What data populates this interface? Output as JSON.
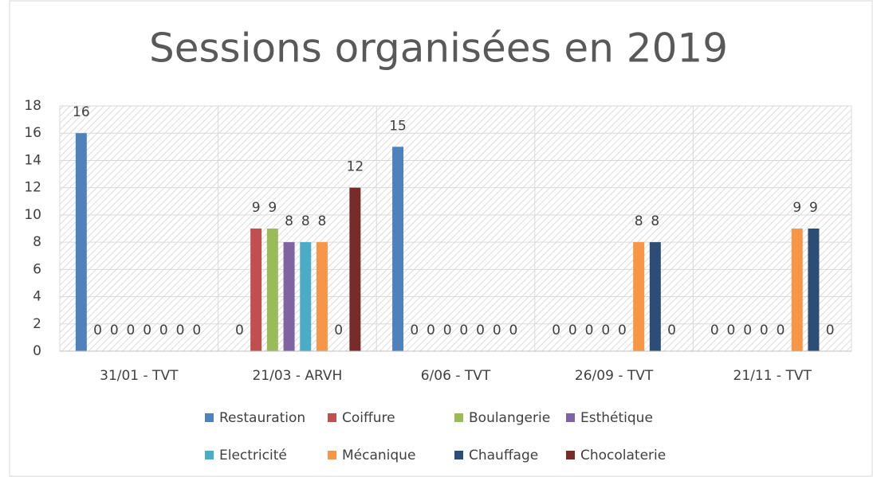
{
  "chart_data": {
    "type": "bar",
    "title": "Sessions organisées en 2019",
    "categories": [
      "31/01 - TVT",
      "21/03 - ARVH",
      "6/06 - TVT",
      "26/09 - TVT",
      "21/11 - TVT"
    ],
    "series": [
      {
        "name": "Restauration",
        "color": "#4f81bd",
        "values": [
          16,
          0,
          15,
          0,
          0
        ]
      },
      {
        "name": "Coiffure",
        "color": "#c0504d",
        "values": [
          0,
          9,
          0,
          0,
          0
        ]
      },
      {
        "name": "Boulangerie",
        "color": "#9bbb59",
        "values": [
          0,
          9,
          0,
          0,
          0
        ]
      },
      {
        "name": "Esthétique",
        "color": "#8064a2",
        "values": [
          0,
          8,
          0,
          0,
          0
        ]
      },
      {
        "name": "Electricité",
        "color": "#4bacc6",
        "values": [
          0,
          8,
          0,
          0,
          0
        ]
      },
      {
        "name": "Mécanique",
        "color": "#f79646",
        "values": [
          0,
          8,
          0,
          8,
          9
        ]
      },
      {
        "name": "Chauffage",
        "color": "#2c4d75",
        "values": [
          0,
          0,
          0,
          8,
          9
        ]
      },
      {
        "name": "Chocolaterie",
        "color": "#772c2a",
        "values": [
          0,
          12,
          0,
          0,
          0
        ]
      }
    ],
    "ylim": [
      0,
      18
    ],
    "yticks": [
      0,
      2,
      4,
      6,
      8,
      10,
      12,
      14,
      16,
      18
    ],
    "grid": true,
    "legend": "bottom"
  }
}
